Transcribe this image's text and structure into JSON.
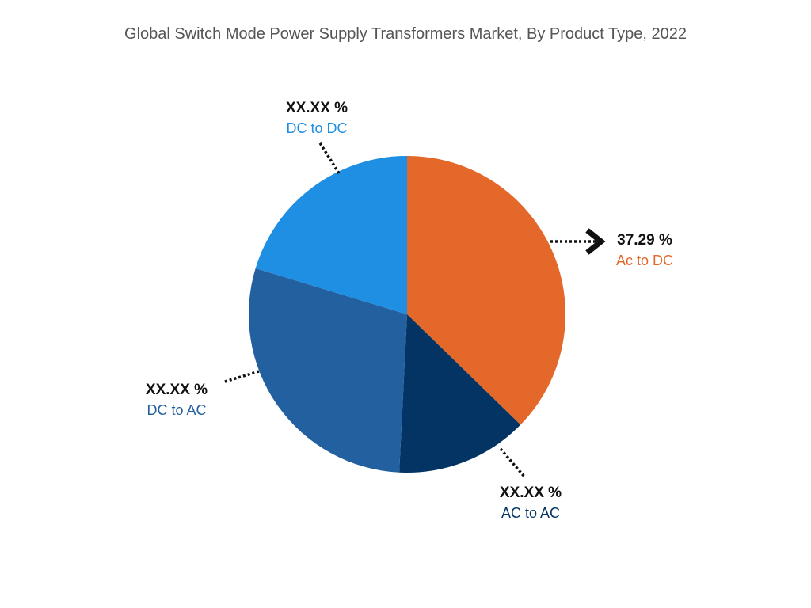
{
  "chart_data": {
    "type": "pie",
    "title": "Global Switch Mode Power Supply Transformers Market, By Product Type, 2022",
    "slices": [
      {
        "name": "Ac to DC",
        "value": 37.29,
        "label": "37.29 %",
        "color": "#E4682A"
      },
      {
        "name": "AC to AC",
        "value": 13.5,
        "label": "XX.XX %",
        "color": "#033464"
      },
      {
        "name": "DC to AC",
        "value": 28.9,
        "label": "XX.XX %",
        "color": "#23609F"
      },
      {
        "name": "DC to DC",
        "value": 20.31,
        "label": "XX.XX %",
        "color": "#1E8FE3"
      }
    ],
    "start_angle_deg": 0,
    "direction": "clockwise"
  }
}
